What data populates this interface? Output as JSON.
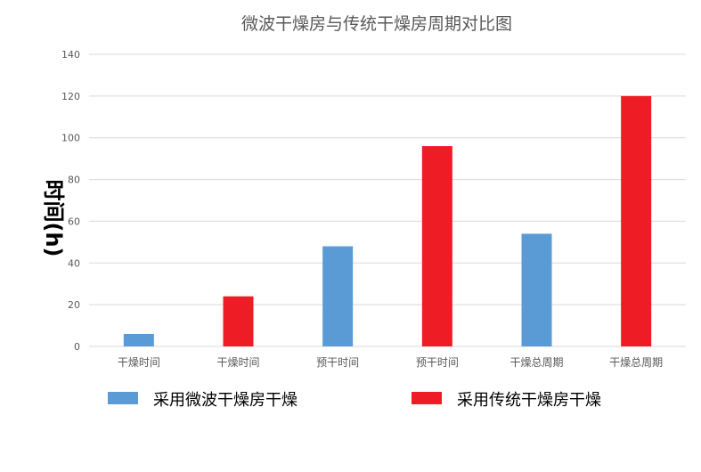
{
  "chart_data": {
    "type": "bar",
    "title": "微波干燥房与传统干燥房周期对比图",
    "xlabel": "",
    "ylabel": "时间(h)",
    "ylim": [
      0,
      140
    ],
    "yticks": [
      0,
      20,
      40,
      60,
      80,
      100,
      120,
      140
    ],
    "grid": true,
    "legend_position": "bottom",
    "categories": [
      "干燥时间",
      "干燥时间",
      "预干时间",
      "预干时间",
      "干燥总周期",
      "干燥总周期"
    ],
    "values": [
      6,
      24,
      48,
      96,
      54,
      120
    ],
    "bar_series": [
      0,
      1,
      0,
      1,
      0,
      1
    ],
    "series": [
      {
        "name": "采用微波干燥房干燥",
        "color": "#5b9bd5"
      },
      {
        "name": "采用传统干燥房干燥",
        "color": "#ee1c25"
      }
    ]
  },
  "colors": {
    "gridline": "#d9d9d9",
    "axis_text": "#595959",
    "title_text": "#595959",
    "ylabel_text": "#000000"
  }
}
